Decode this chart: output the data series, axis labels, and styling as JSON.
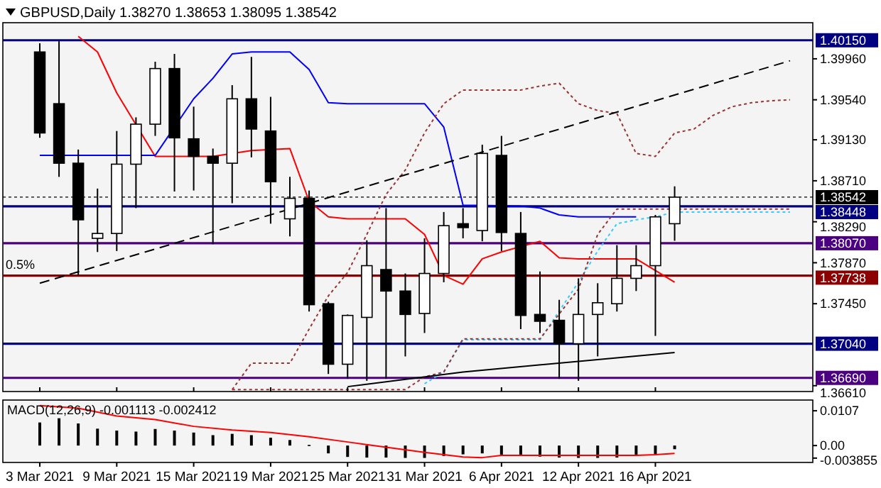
{
  "chart_data": [
    {
      "type": "candlestick",
      "title": "GBPUSD,Daily 1.38270 1.38653 1.38095 1.38542",
      "tick_labels": "y",
      "categories": [
        "3 Mar 2021",
        null,
        null,
        null,
        "9 Mar 2021",
        null,
        null,
        null,
        "15 Mar 2021",
        null,
        null,
        null,
        "19 Mar 2021",
        null,
        null,
        null,
        "25 Mar 2021",
        null,
        null,
        null,
        "31 Mar 2021",
        null,
        null,
        null,
        "6 Apr 2021",
        null,
        null,
        null,
        "12 Apr 2021",
        null,
        null,
        null,
        "16 Apr 2021",
        null,
        null,
        null,
        null,
        null,
        null,
        null
      ],
      "ohlc": [
        [
          1.4003,
          1.4012,
          1.3915,
          1.392
        ],
        [
          1.395,
          1.4014,
          1.3875,
          1.3889
        ],
        [
          1.3889,
          1.3903,
          1.3774,
          1.3831
        ],
        [
          1.3812,
          1.3863,
          1.3798,
          1.3817
        ],
        [
          1.3817,
          1.3922,
          1.3799,
          1.3888
        ],
        [
          1.3888,
          1.3936,
          1.3843,
          1.3929
        ],
        [
          1.3929,
          1.3993,
          1.3917,
          1.3986
        ],
        [
          1.3986,
          1.4001,
          1.386,
          1.3915
        ],
        [
          1.3914,
          1.3947,
          1.3861,
          1.3896
        ],
        [
          1.3896,
          1.3904,
          1.3806,
          1.3889
        ],
        [
          1.3889,
          1.3969,
          1.3848,
          1.3955
        ],
        [
          1.3955,
          1.3998,
          1.3895,
          1.3924
        ],
        [
          1.3922,
          1.3957,
          1.3827,
          1.387
        ],
        [
          1.3832,
          1.3875,
          1.3814,
          1.3853
        ],
        [
          1.3853,
          1.3861,
          1.3737,
          1.3744
        ],
        [
          1.3745,
          1.3747,
          1.3673,
          1.3683
        ],
        [
          1.3683,
          1.3734,
          1.3668,
          1.3733
        ],
        [
          1.3731,
          1.381,
          1.3666,
          1.3784
        ],
        [
          1.378,
          1.3843,
          1.3668,
          1.3758
        ],
        [
          1.3758,
          1.3776,
          1.3691,
          1.3734
        ],
        [
          1.3735,
          1.3812,
          1.3715,
          1.3776
        ],
        [
          1.3776,
          1.3839,
          1.3767,
          1.3825
        ],
        [
          1.3827,
          1.3843,
          1.3812,
          1.3823
        ],
        [
          1.382,
          1.3908,
          1.3809,
          1.3899
        ],
        [
          1.3897,
          1.3917,
          1.3799,
          1.3818
        ],
        [
          1.3817,
          1.3839,
          1.3719,
          1.3733
        ],
        [
          1.3734,
          1.3778,
          1.3715,
          1.3727
        ],
        [
          1.3728,
          1.3749,
          1.3668,
          1.3704
        ],
        [
          1.3704,
          1.3771,
          1.3666,
          1.3734
        ],
        [
          1.3734,
          1.3766,
          1.3691,
          1.3746
        ],
        [
          1.3745,
          1.3805,
          1.3737,
          1.3771
        ],
        [
          1.3771,
          1.3805,
          1.3758,
          1.3784
        ],
        [
          1.3784,
          1.3836,
          1.3712,
          1.3834
        ],
        [
          1.3827,
          1.38653,
          1.38095,
          1.38542
        ],
        null,
        null,
        null,
        null,
        null,
        null
      ],
      "series": [
        {
          "type": "line",
          "color": "#ff0000",
          "values": [
            null,
            null,
            1.4019,
            1.4003,
            1.3961,
            null,
            1.3896,
            1.3896,
            1.3896,
            1.3896,
            null,
            1.3902,
            null,
            1.3904,
            1.385,
            1.3834,
            1.3832,
            1.3832,
            1.3832,
            1.3832,
            1.3816,
            1.3774,
            1.3765,
            1.3791,
            1.3798,
            null,
            1.3809,
            1.3792,
            1.3791,
            1.3791,
            1.3791,
            1.3791,
            null,
            1.3767,
            null,
            null,
            null,
            null,
            null,
            null
          ]
        },
        {
          "type": "line",
          "color": "#0000ff",
          "values": [
            1.3897,
            null,
            1.3897,
            1.3897,
            1.3897,
            null,
            1.3897,
            null,
            1.3955,
            1.3976,
            1.4001,
            1.4003,
            1.4003,
            1.4003,
            1.3985,
            1.3951,
            1.395,
            1.395,
            1.395,
            1.395,
            1.395,
            1.3926,
            1.3846,
            null,
            null,
            1.3845,
            1.3843,
            1.3836,
            1.3834,
            1.3834,
            1.3834,
            1.3834,
            null,
            null,
            null,
            null,
            null,
            null,
            null,
            null
          ]
        },
        {
          "type": "line",
          "color": "#33ccff",
          "line_style": "dotted",
          "values": [
            null,
            null,
            null,
            null,
            null,
            null,
            null,
            null,
            null,
            null,
            null,
            null,
            null,
            null,
            null,
            null,
            null,
            null,
            null,
            null,
            1.3663,
            1.3675,
            1.3708,
            1.3708,
            1.3708,
            1.3708,
            1.3708,
            null,
            1.3767,
            1.3799,
            1.3827,
            1.3831,
            1.3834,
            1.3839,
            1.3839,
            1.3839,
            1.3839,
            1.3839,
            1.3839,
            1.3839
          ]
        },
        {
          "type": "line",
          "color": "#993333",
          "line_style": "dotted",
          "values": [
            null,
            null,
            null,
            null,
            null,
            null,
            null,
            null,
            null,
            null,
            1.3657,
            1.3684,
            1.3684,
            1.3684,
            1.3719,
            1.3753,
            1.3777,
            1.3816,
            1.3857,
            1.3882,
            1.392,
            1.395,
            1.3964,
            1.3964,
            1.3964,
            1.3964,
            1.3968,
            1.3971,
            1.395,
            1.3943,
            1.394,
            1.3899,
            1.3896,
            1.392,
            1.3924,
            1.3938,
            1.3947,
            1.3951,
            1.3953,
            1.3954
          ]
        },
        {
          "type": "line",
          "color": "#993333",
          "line_style": "dotted",
          "values": [
            null,
            null,
            null,
            null,
            null,
            null,
            null,
            null,
            null,
            null,
            1.3657,
            1.3657,
            1.3657,
            1.3657,
            1.3657,
            1.3657,
            1.3657,
            1.3657,
            1.3657,
            1.3657,
            1.367,
            1.3675,
            1.3709,
            1.3709,
            1.3709,
            1.3709,
            1.3709,
            null,
            1.376,
            1.3816,
            1.3842,
            1.3842,
            1.3842,
            1.3842,
            1.3842,
            1.3842,
            1.3842,
            1.3842,
            1.3842,
            1.3842
          ]
        },
        {
          "type": "line",
          "color": "#000000",
          "line_style": "dashed",
          "values": [
            1.3766,
            null,
            null,
            null,
            null,
            null,
            null,
            null,
            null,
            null,
            null,
            null,
            null,
            null,
            null,
            null,
            null,
            null,
            null,
            null,
            null,
            null,
            null,
            null,
            null,
            null,
            null,
            null,
            null,
            null,
            null,
            null,
            null,
            null,
            null,
            null,
            null,
            null,
            null,
            1.3994
          ]
        },
        {
          "type": "line",
          "color": "#000000",
          "values": [
            null,
            null,
            null,
            null,
            null,
            null,
            null,
            null,
            null,
            null,
            null,
            null,
            null,
            null,
            null,
            null,
            1.366,
            null,
            null,
            null,
            null,
            null,
            1.3675,
            null,
            null,
            null,
            null,
            null,
            null,
            null,
            null,
            null,
            null,
            1.3695,
            null,
            null,
            null,
            null,
            null,
            null
          ]
        }
      ],
      "ylim": [
        1.3655,
        1.4033
      ],
      "yticks": [
        {
          "value": 1.3996,
          "label": "1.39960"
        },
        {
          "value": 1.3954,
          "label": "1.39540"
        },
        {
          "value": 1.3913,
          "label": "1.39130"
        },
        {
          "value": 1.3871,
          "label": "1.38710"
        },
        {
          "value": 1.3829,
          "label": "1.38290"
        },
        {
          "value": 1.3787,
          "label": "1.37870"
        },
        {
          "value": 1.3745,
          "label": "1.37450"
        },
        {
          "value": 1.3661,
          "label": "1.36610"
        }
      ],
      "ref_lines": [
        {
          "axis": "y",
          "value": 1.4015,
          "label": "1.40150",
          "color": "#000080"
        },
        {
          "axis": "y",
          "value": 1.38542,
          "label": "1.38542",
          "color": "#000000",
          "line_style": "dotted"
        },
        {
          "axis": "y",
          "value": 1.38448,
          "label": "1.38448",
          "color": "#000080"
        },
        {
          "axis": "y",
          "value": 1.3807,
          "label": "1.38070",
          "color": "#4b0082"
        },
        {
          "axis": "y",
          "value": 1.37738,
          "label": "1.37738",
          "color": "#8b0000"
        },
        {
          "axis": "y",
          "value": 1.3704,
          "label": "1.37040",
          "color": "#000080"
        },
        {
          "axis": "y",
          "value": 1.3669,
          "label": "1.36690",
          "color": "#4b0082"
        }
      ],
      "annotations": [
        {
          "text": "0.5%",
          "x": "3 Mar 2021",
          "y": 1.3775
        }
      ]
    },
    {
      "type": "bar",
      "title": "MACD(12,26,9) -0.001113 -0.002412",
      "categories": [
        "3 Mar 2021",
        null,
        null,
        null,
        "9 Mar 2021",
        null,
        null,
        null,
        "15 Mar 2021",
        null,
        null,
        null,
        "19 Mar 2021",
        null,
        null,
        null,
        "25 Mar 2021",
        null,
        null,
        null,
        "31 Mar 2021",
        null,
        null,
        null,
        "6 Apr 2021",
        null,
        null,
        null,
        "12 Apr 2021",
        null,
        null,
        null,
        "16 Apr 2021",
        null,
        null,
        null,
        null,
        null,
        null,
        null
      ],
      "series": [
        {
          "type": "bar",
          "color": "#000000",
          "values": [
            0.0071,
            0.0084,
            0.0068,
            0.0052,
            0.0046,
            0.0043,
            0.0051,
            0.0046,
            0.004,
            0.0032,
            0.0036,
            0.0032,
            0.0024,
            0.0017,
            0.0002,
            -0.0024,
            -0.0035,
            -0.0037,
            -0.0037,
            -0.0038,
            -0.0038,
            -0.0032,
            -0.0027,
            -0.0024,
            -0.0029,
            -0.0032,
            -0.0034,
            -0.0037,
            -0.0038,
            -0.0038,
            -0.0037,
            -0.0032,
            -0.0027,
            -0.001113,
            null,
            null,
            null,
            null,
            null,
            null
          ]
        },
        {
          "type": "line",
          "color": "#ff0000",
          "values": [
            0.0123,
            null,
            0.0115,
            null,
            0.0091,
            null,
            0.008,
            null,
            0.0059,
            null,
            0.0048,
            null,
            0.004,
            null,
            0.0027,
            null,
            0.0011,
            null,
            -0.0005,
            null,
            -0.0021,
            null,
            -0.0035,
            -0.0037,
            -0.003,
            -0.003,
            -0.003,
            -0.003,
            -0.003,
            -0.003,
            -0.003,
            -0.003,
            -0.0028,
            -0.002412,
            null,
            null,
            null,
            null,
            null,
            null
          ]
        }
      ],
      "ylim": [
        -0.0052,
        0.014
      ],
      "yticks": [
        0.0107,
        {
          "value": 0,
          "label": "0.00"
        },
        -0.003855
      ]
    }
  ]
}
